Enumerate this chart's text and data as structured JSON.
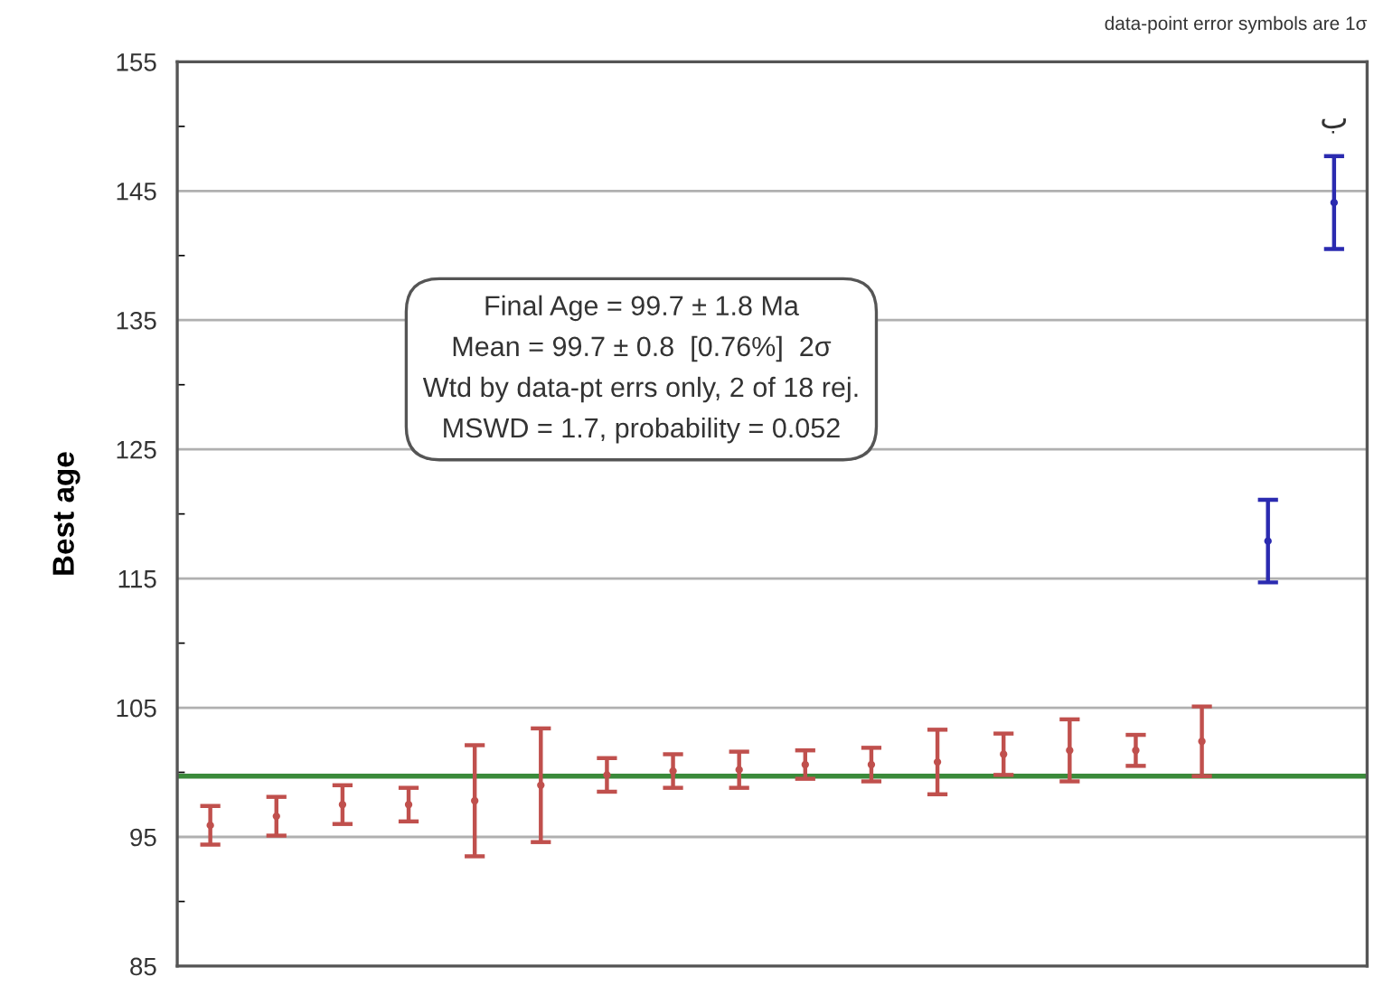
{
  "chart_data": {
    "type": "scatter",
    "ylabel": "Best age",
    "categories": [
      null,
      null,
      null,
      null,
      null,
      null,
      null,
      null,
      null,
      null,
      null,
      null,
      null,
      null,
      null,
      null,
      null,
      null
    ],
    "series": [
      {
        "color": "#c0504d",
        "values": [
          95.9,
          96.6,
          97.5,
          97.5,
          97.8,
          99.0,
          99.8,
          100.1,
          100.2,
          100.6,
          100.6,
          100.8,
          101.4,
          101.7,
          101.7,
          102.4,
          null,
          null
        ],
        "errors": [
          1.5,
          1.5,
          1.5,
          1.3,
          4.3,
          4.4,
          1.3,
          1.3,
          1.4,
          1.1,
          1.3,
          2.5,
          1.6,
          2.4,
          1.2,
          2.7,
          null,
          null
        ]
      },
      {
        "color": "#2b2bb0",
        "values": [
          null,
          null,
          null,
          null,
          null,
          null,
          null,
          null,
          null,
          null,
          null,
          null,
          null,
          null,
          null,
          null,
          117.9,
          144.1
        ],
        "errors": [
          null,
          null,
          null,
          null,
          null,
          null,
          null,
          null,
          null,
          null,
          null,
          null,
          null,
          null,
          null,
          null,
          3.2,
          3.6
        ]
      }
    ],
    "ylim": [
      85,
      155
    ],
    "yticks": [
      85,
      {
        "value": 90,
        "label": null
      },
      95,
      {
        "value": 100,
        "label": null
      },
      105,
      {
        "value": 110,
        "label": null
      },
      115,
      {
        "value": 120,
        "label": null
      },
      125,
      {
        "value": 130,
        "label": null
      },
      135,
      {
        "value": 140,
        "label": null
      },
      145,
      {
        "value": 150,
        "label": null
      },
      155
    ],
    "grid": "y",
    "legend": false,
    "ref_lines": [
      {
        "axis": "y",
        "value": 99.7,
        "color": "#3a8a3a"
      }
    ],
    "annotations": [
      "Final Age = 99.7 ± 1.8 Ma\nMean = 99.7 ± 0.8  [0.76%]  2σ\nWtd by data-pt errs only, 2 of 18 rej.\nMSWD = 1.7, probability = 0.052",
      "data-point error symbols are 1σ",
      "ب"
    ]
  }
}
